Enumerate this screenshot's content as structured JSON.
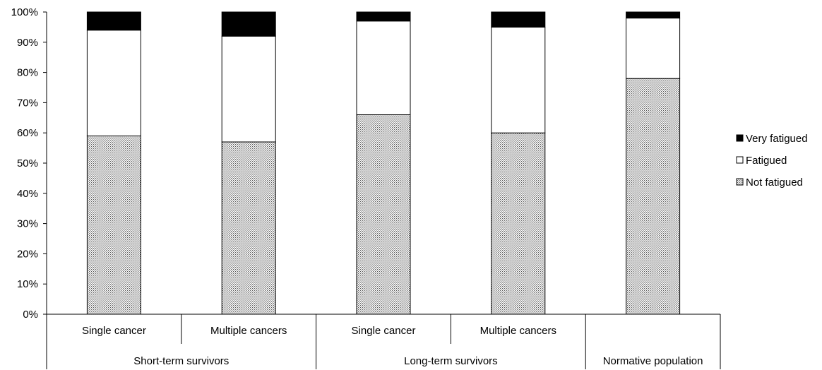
{
  "chart_data": {
    "type": "bar",
    "stacked": true,
    "percent_stacked": true,
    "categories": [
      "Single cancer",
      "Multiple cancers",
      "Single cancer",
      "Multiple cancers",
      ""
    ],
    "groups": [
      {
        "label": "Short-term survivors",
        "categories": [
          0,
          1
        ]
      },
      {
        "label": "Long-term survivors",
        "categories": [
          2,
          3
        ]
      },
      {
        "label": "Normative population",
        "categories": [
          4
        ]
      }
    ],
    "series": [
      {
        "name": "Not fatigued",
        "values": [
          59,
          57,
          66,
          60,
          78
        ],
        "pattern": "dotted",
        "color": "#000000"
      },
      {
        "name": "Fatigued",
        "values": [
          35,
          35,
          31,
          35,
          20
        ],
        "pattern": "solid",
        "color": "#ffffff"
      },
      {
        "name": "Very fatigued",
        "values": [
          6,
          8,
          3,
          5,
          2
        ],
        "pattern": "solid",
        "color": "#000000"
      }
    ],
    "legend_order": [
      "Very fatigued",
      "Fatigued",
      "Not fatigued"
    ],
    "legend_position": "right",
    "ylim": [
      0,
      100
    ],
    "yticks": [
      "0%",
      "10%",
      "20%",
      "30%",
      "40%",
      "50%",
      "60%",
      "70%",
      "80%",
      "90%",
      "100%"
    ],
    "xlabel": "",
    "ylabel": "",
    "title": "",
    "grid": false
  }
}
